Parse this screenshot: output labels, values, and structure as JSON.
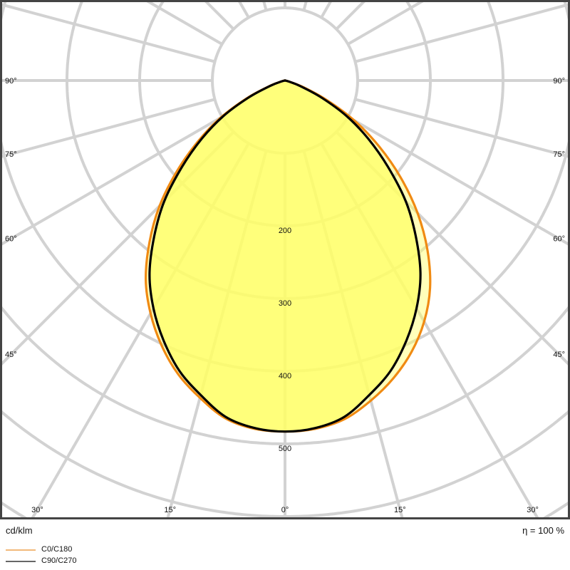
{
  "chart_data": {
    "type": "polar",
    "unit_label": "cd/klm",
    "efficiency_label": "η = 100 %",
    "radial_ticks": [
      100,
      200,
      300,
      400,
      500,
      600,
      700
    ],
    "radial_tick_labels": [
      "200",
      "300",
      "400",
      "500"
    ],
    "radial_tick_label_values": [
      200,
      300,
      400,
      500
    ],
    "angle_labels_side": [
      "90°",
      "75°",
      "60°",
      "45°"
    ],
    "angle_labels_side_values": [
      90,
      75,
      60,
      45
    ],
    "angle_labels_bottom": [
      "30°",
      "15°",
      "0°",
      "15°",
      "30°"
    ],
    "angle_labels_bottom_values": [
      -30,
      -15,
      0,
      15,
      30
    ],
    "angle_step": 15,
    "gamma": [
      0,
      5,
      10,
      15,
      20,
      25,
      30,
      35,
      40,
      45,
      50,
      55,
      60,
      65,
      70,
      75,
      80,
      85,
      90
    ],
    "series": [
      {
        "name": "C0/C180",
        "color": "#f08a12",
        "right": [
          483,
          481,
          473,
          456,
          436,
          412,
          383,
          348,
          305,
          258,
          208,
          158,
          110,
          63,
          27,
          6,
          0,
          0,
          0
        ],
        "left": [
          483,
          481,
          472,
          452,
          430,
          402,
          370,
          334,
          290,
          244,
          194,
          146,
          102,
          58,
          24,
          5,
          0,
          0,
          0
        ]
      },
      {
        "name": "C90/C270",
        "color": "#000000",
        "right": [
          483,
          480,
          470,
          448,
          425,
          395,
          362,
          325,
          280,
          235,
          185,
          140,
          98,
          55,
          22,
          5,
          0,
          0,
          0
        ],
        "left": [
          483,
          480,
          470,
          448,
          425,
          395,
          362,
          325,
          280,
          235,
          185,
          140,
          98,
          55,
          22,
          5,
          0,
          0,
          0
        ]
      }
    ],
    "fill_color": "#ffff66",
    "grid": true,
    "legend_position": "bottom-left"
  }
}
